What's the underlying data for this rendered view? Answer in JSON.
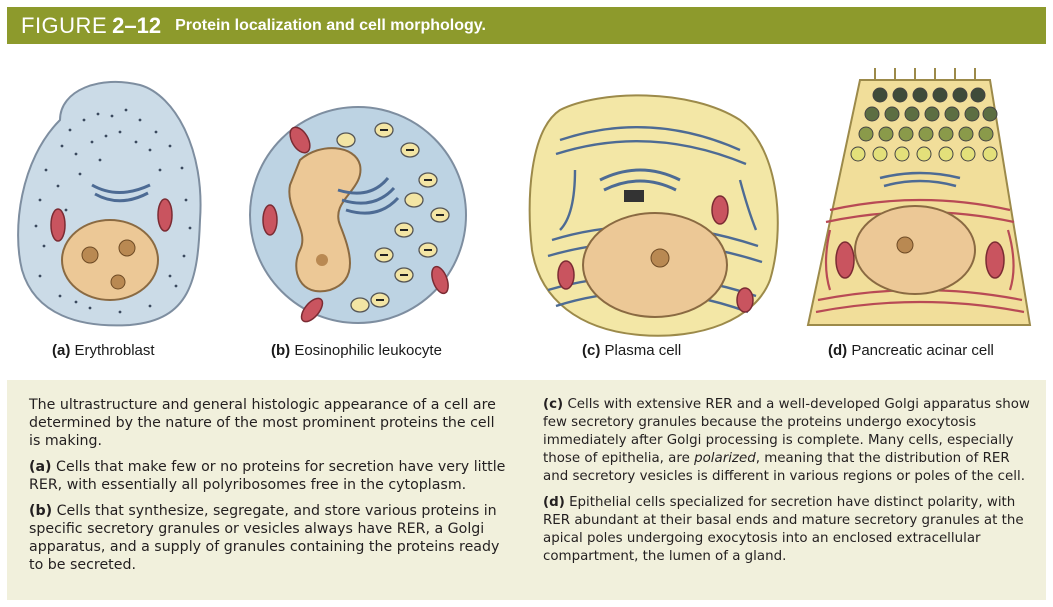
{
  "header": {
    "figure_word": "FIGURE",
    "figure_number": "2–12",
    "title": "Protein localization and cell morphology."
  },
  "panels": [
    {
      "letter": "(a)",
      "name": "Erythroblast"
    },
    {
      "letter": "(b)",
      "name": "Eosinophilic leukocyte"
    },
    {
      "letter": "(c)",
      "name": "Plasma cell"
    },
    {
      "letter": "(d)",
      "name": "Pancreatic acinar cell"
    }
  ],
  "caption": {
    "intro": "The ultrastructure and general histologic appearance of a cell are determined by the nature of the most prominent proteins the cell is making.",
    "a_letter": "(a)",
    "a_text": " Cells that make few or no proteins for secretion have very little RER, with essentially all polyribosomes free in the cytoplasm.",
    "b_letter": "(b)",
    "b_text": " Cells that synthesize, segregate, and store various proteins in specific secretory granules or vesicles always have RER, a Golgi apparatus, and a supply of granules containing the proteins ready to be secreted.",
    "c_letter": "(c)",
    "c_text_1": " Cells with extensive RER and a well-developed Golgi apparatus show few secretory granules because the proteins undergo exocytosis immediately after Golgi processing is complete. Many cells, especially those of epithelia, are ",
    "c_italic": "polarized",
    "c_text_2": ", meaning that the distribution of RER and secretory vesicles is different in various regions or poles of the cell.",
    "d_letter": "(d)",
    "d_text": " Epithelial cells specialized for secretion have distinct polarity, with RER abundant at their basal ends and mature secretory granules at the apical poles undergoing exocytosis into an enclosed extracellular compartment, the lumen of a gland."
  },
  "colors": {
    "header_bg": "#8d9a2c",
    "caption_bg": "#f1f0dc",
    "cytoplasm_blue": "#c4d8e6",
    "cytoplasm_yellow": "#f3e7a6",
    "nucleus": "#ecc896",
    "mitochondria": "#c9545f",
    "rer": "#4d6b94"
  }
}
